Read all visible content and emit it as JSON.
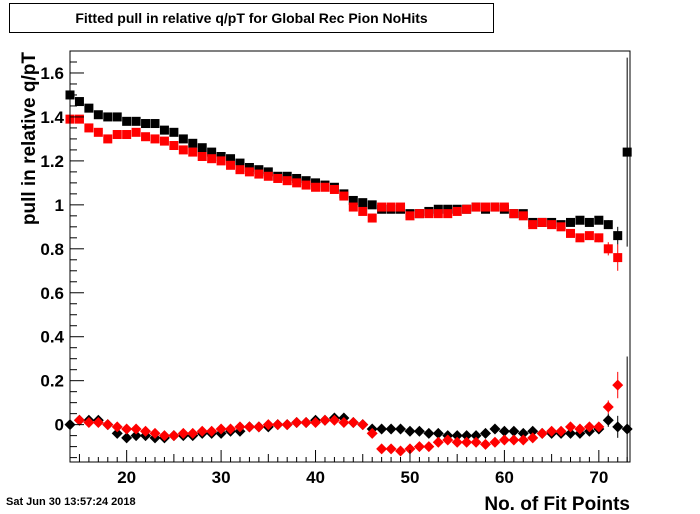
{
  "title": "Fitted pull in relative q/pT for Global Rec Pion NoHits",
  "timestamp": "Sat Jun 30 13:57:24 2018",
  "chart_data": {
    "type": "scatter",
    "xlabel": "No. of Fit Points",
    "ylabel": "pull in relative q/pT",
    "xlim": [
      14,
      73.3
    ],
    "ylim": [
      -0.17,
      1.7
    ],
    "x_ticks": [
      20,
      30,
      40,
      50,
      60,
      70
    ],
    "x_tick_labels": [
      "20",
      "30",
      "40",
      "50",
      "60",
      "70"
    ],
    "y_ticks": [
      0,
      0.2,
      0.4,
      0.6,
      0.8,
      1,
      1.2,
      1.4,
      1.6
    ],
    "y_tick_labels": [
      "0",
      "0.2",
      "0.4",
      "0.6",
      "0.8",
      "1",
      "1.2",
      "1.4",
      "1.6"
    ],
    "grid": false,
    "series": [
      {
        "marker": "square",
        "color": "#000000",
        "x": [
          14,
          15,
          16,
          17,
          18,
          19,
          20,
          21,
          22,
          23,
          24,
          25,
          26,
          27,
          28,
          29,
          30,
          31,
          32,
          33,
          34,
          35,
          36,
          37,
          38,
          39,
          40,
          41,
          42,
          43,
          44,
          45,
          46,
          47,
          48,
          49,
          50,
          51,
          52,
          53,
          54,
          55,
          56,
          57,
          58,
          59,
          60,
          61,
          62,
          63,
          64,
          65,
          66,
          67,
          68,
          69,
          70,
          71,
          72,
          73
        ],
        "y": [
          1.5,
          1.47,
          1.44,
          1.41,
          1.4,
          1.4,
          1.38,
          1.38,
          1.37,
          1.37,
          1.34,
          1.33,
          1.3,
          1.28,
          1.26,
          1.24,
          1.22,
          1.21,
          1.19,
          1.17,
          1.16,
          1.15,
          1.13,
          1.13,
          1.12,
          1.11,
          1.1,
          1.09,
          1.08,
          1.05,
          1.02,
          1.01,
          1.0,
          0.98,
          0.98,
          0.98,
          0.96,
          0.96,
          0.97,
          0.98,
          0.98,
          0.98,
          0.98,
          0.99,
          0.98,
          0.99,
          0.98,
          0.96,
          0.96,
          0.92,
          0.92,
          0.92,
          0.91,
          0.92,
          0.93,
          0.92,
          0.93,
          0.91,
          0.86,
          1.24
        ],
        "err": [
          0,
          0,
          0,
          0,
          0,
          0,
          0,
          0,
          0,
          0,
          0,
          0,
          0,
          0,
          0,
          0,
          0,
          0,
          0,
          0,
          0,
          0,
          0,
          0,
          0,
          0,
          0,
          0,
          0,
          0,
          0,
          0,
          0,
          0,
          0,
          0,
          0,
          0,
          0,
          0,
          0,
          0,
          0,
          0,
          0,
          0,
          0,
          0,
          0,
          0,
          0,
          0,
          0,
          0,
          0,
          0,
          0.01,
          0.02,
          0.04,
          0.43
        ]
      },
      {
        "marker": "square",
        "color": "#ff0000",
        "x": [
          14,
          15,
          16,
          17,
          18,
          19,
          20,
          21,
          22,
          23,
          24,
          25,
          26,
          27,
          28,
          29,
          30,
          31,
          32,
          33,
          34,
          35,
          36,
          37,
          38,
          39,
          40,
          41,
          42,
          43,
          44,
          45,
          46,
          47,
          48,
          49,
          50,
          51,
          52,
          53,
          54,
          55,
          56,
          57,
          58,
          59,
          60,
          61,
          62,
          63,
          64,
          65,
          66,
          67,
          68,
          69,
          70,
          71,
          72
        ],
        "y": [
          1.39,
          1.39,
          1.35,
          1.33,
          1.3,
          1.32,
          1.32,
          1.33,
          1.31,
          1.3,
          1.29,
          1.27,
          1.25,
          1.24,
          1.22,
          1.21,
          1.2,
          1.18,
          1.16,
          1.15,
          1.14,
          1.13,
          1.12,
          1.11,
          1.1,
          1.09,
          1.08,
          1.08,
          1.07,
          1.04,
          0.99,
          0.97,
          0.94,
          0.99,
          0.99,
          0.99,
          0.95,
          0.96,
          0.96,
          0.96,
          0.96,
          0.97,
          0.98,
          0.99,
          0.99,
          0.99,
          0.99,
          0.96,
          0.95,
          0.91,
          0.92,
          0.91,
          0.9,
          0.87,
          0.85,
          0.86,
          0.85,
          0.8,
          0.76
        ],
        "err": [
          0,
          0,
          0,
          0,
          0,
          0,
          0,
          0,
          0,
          0,
          0,
          0,
          0,
          0,
          0,
          0,
          0,
          0,
          0,
          0,
          0,
          0,
          0,
          0,
          0,
          0,
          0,
          0,
          0,
          0,
          0,
          0,
          0,
          0,
          0,
          0,
          0,
          0,
          0,
          0,
          0,
          0,
          0,
          0,
          0,
          0,
          0,
          0,
          0,
          0,
          0,
          0,
          0,
          0,
          0.01,
          0.01,
          0.02,
          0.03,
          0.06
        ]
      },
      {
        "marker": "diamond",
        "color": "#000000",
        "x": [
          14,
          15,
          16,
          17,
          18,
          19,
          20,
          21,
          22,
          23,
          24,
          25,
          26,
          27,
          28,
          29,
          30,
          31,
          32,
          33,
          34,
          35,
          36,
          37,
          38,
          39,
          40,
          41,
          42,
          43,
          44,
          45,
          46,
          47,
          48,
          49,
          50,
          51,
          52,
          53,
          54,
          55,
          56,
          57,
          58,
          59,
          60,
          61,
          62,
          63,
          64,
          65,
          66,
          67,
          68,
          69,
          70,
          71,
          72,
          73
        ],
        "y": [
          0.0,
          0.02,
          0.02,
          0.02,
          0.0,
          -0.04,
          -0.06,
          -0.05,
          -0.05,
          -0.06,
          -0.06,
          -0.05,
          -0.05,
          -0.05,
          -0.04,
          -0.04,
          -0.04,
          -0.03,
          -0.03,
          -0.01,
          -0.01,
          -0.01,
          0.0,
          0.0,
          0.01,
          0.01,
          0.02,
          0.02,
          0.03,
          0.03,
          0.01,
          0.0,
          -0.02,
          -0.02,
          -0.02,
          -0.02,
          -0.03,
          -0.03,
          -0.04,
          -0.04,
          -0.05,
          -0.05,
          -0.05,
          -0.05,
          -0.04,
          -0.02,
          -0.03,
          -0.03,
          -0.04,
          -0.03,
          -0.04,
          -0.04,
          -0.04,
          -0.04,
          -0.04,
          -0.03,
          -0.02,
          0.02,
          -0.01,
          -0.02
        ],
        "err": [
          0,
          0,
          0,
          0,
          0,
          0,
          0,
          0,
          0,
          0,
          0,
          0,
          0,
          0,
          0,
          0,
          0,
          0,
          0,
          0,
          0,
          0,
          0,
          0,
          0,
          0,
          0,
          0,
          0,
          0,
          0,
          0,
          0,
          0,
          0,
          0,
          0,
          0,
          0,
          0,
          0,
          0,
          0,
          0,
          0,
          0,
          0,
          0,
          0,
          0,
          0,
          0,
          0,
          0,
          0,
          0.01,
          0.02,
          0.03,
          0.05,
          0.33
        ]
      },
      {
        "marker": "diamond",
        "color": "#ff0000",
        "x": [
          15,
          16,
          17,
          18,
          19,
          20,
          21,
          22,
          23,
          24,
          25,
          26,
          27,
          28,
          29,
          30,
          31,
          32,
          33,
          34,
          35,
          36,
          37,
          38,
          39,
          40,
          41,
          42,
          43,
          44,
          45,
          46,
          47,
          48,
          49,
          50,
          51,
          52,
          53,
          54,
          55,
          56,
          57,
          58,
          59,
          60,
          61,
          62,
          63,
          64,
          65,
          66,
          67,
          68,
          69,
          70,
          71,
          72
        ],
        "y": [
          0.02,
          0.01,
          0.01,
          0.0,
          -0.01,
          -0.02,
          -0.02,
          -0.03,
          -0.04,
          -0.05,
          -0.05,
          -0.04,
          -0.04,
          -0.03,
          -0.03,
          -0.02,
          -0.02,
          -0.01,
          -0.01,
          -0.01,
          0.0,
          0.0,
          0.0,
          0.01,
          0.01,
          0.01,
          0.02,
          0.02,
          0.01,
          0.01,
          0.0,
          -0.04,
          -0.11,
          -0.11,
          -0.12,
          -0.11,
          -0.1,
          -0.1,
          -0.08,
          -0.07,
          -0.08,
          -0.08,
          -0.08,
          -0.09,
          -0.08,
          -0.07,
          -0.07,
          -0.07,
          -0.06,
          -0.04,
          -0.03,
          -0.03,
          -0.01,
          -0.02,
          -0.01,
          -0.01,
          0.08,
          0.18
        ],
        "err": [
          0,
          0,
          0,
          0,
          0,
          0,
          0,
          0,
          0,
          0,
          0,
          0,
          0,
          0,
          0,
          0,
          0,
          0,
          0,
          0,
          0,
          0,
          0,
          0,
          0,
          0,
          0,
          0,
          0,
          0,
          0,
          0,
          0,
          0,
          0,
          0,
          0,
          0,
          0,
          0,
          0,
          0,
          0,
          0,
          0,
          0,
          0,
          0,
          0,
          0,
          0,
          0,
          0,
          0,
          0.01,
          0.02,
          0.03,
          0.06
        ]
      }
    ]
  }
}
